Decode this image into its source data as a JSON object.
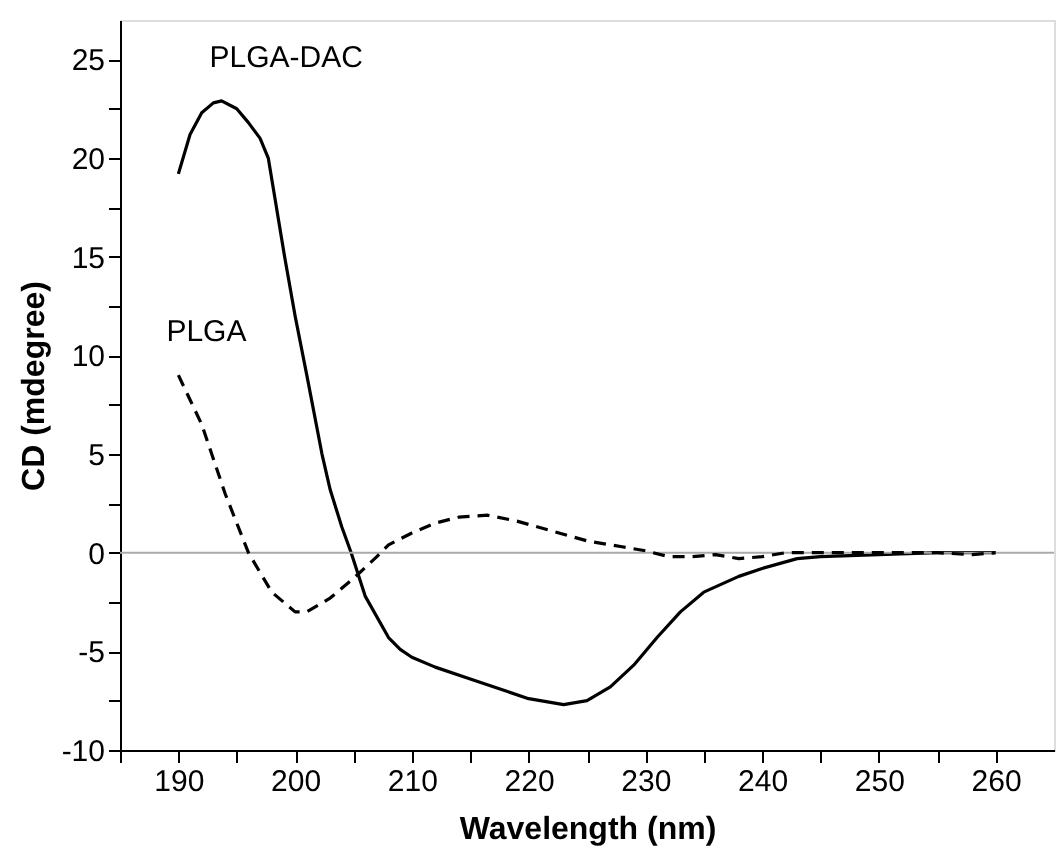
{
  "chart_data": {
    "type": "line",
    "xlabel": "Wavelength (nm)",
    "ylabel": "CD (mdegree)",
    "xlim": [
      185,
      265
    ],
    "ylim": [
      -10,
      27
    ],
    "xticks": [
      {
        "value": 185,
        "label": null
      },
      190,
      {
        "value": 195,
        "label": null
      },
      200,
      {
        "value": 205,
        "label": null
      },
      210,
      {
        "value": 215,
        "label": null
      },
      220,
      {
        "value": 225,
        "label": null
      },
      230,
      {
        "value": 235,
        "label": null
      },
      240,
      {
        "value": 245,
        "label": null
      },
      250,
      {
        "value": 255,
        "label": null
      },
      260
    ],
    "yticks": [
      -10,
      {
        "value": -7.5,
        "label": null
      },
      -5,
      {
        "value": -2.5,
        "label": null
      },
      0,
      {
        "value": 2.5,
        "label": null
      },
      5,
      {
        "value": 7.5,
        "label": null
      },
      10,
      {
        "value": 12.5,
        "label": null
      },
      15,
      {
        "value": 17.5,
        "label": null
      },
      20,
      {
        "value": 22.5,
        "label": null
      },
      25
    ],
    "grid": false,
    "ref_lines": [
      {
        "axis": "y",
        "value": 0,
        "color": "#aaaaaa",
        "line_style": "solid"
      }
    ],
    "series": [
      {
        "name": "PLGA-DAC",
        "color": "#000000",
        "line_style": "solid",
        "x": [
          190,
          191,
          192,
          193,
          193.7,
          195,
          196,
          197,
          197.7,
          199.1,
          200,
          201,
          202.3,
          203,
          204,
          204.8,
          206,
          208,
          209,
          210,
          212,
          215,
          218,
          220,
          223,
          225,
          227,
          229,
          231,
          233,
          235,
          238,
          240,
          243,
          245,
          250,
          255,
          260
        ],
        "values": [
          19.2,
          21.2,
          22.3,
          22.8,
          22.9,
          22.5,
          21.8,
          21,
          20,
          15,
          12,
          9,
          5,
          3.2,
          1.3,
          0,
          -2.2,
          -4.3,
          -4.9,
          -5.3,
          -5.8,
          -6.4,
          -7,
          -7.4,
          -7.7,
          -7.5,
          -6.8,
          -5.7,
          -4.3,
          -3,
          -2,
          -1.2,
          -0.8,
          -0.3,
          -0.2,
          -0.1,
          0,
          0
        ]
      },
      {
        "name": "PLGA",
        "color": "#000000",
        "line_style": "dashed",
        "x": [
          190,
          192,
          194,
          196,
          198,
          200,
          201,
          203,
          205,
          207,
          208,
          210,
          212,
          214,
          216.5,
          219,
          222,
          225,
          228,
          230,
          232,
          234,
          236,
          238,
          240,
          242,
          245,
          250,
          255,
          258,
          260
        ],
        "values": [
          9,
          6.5,
          3,
          0,
          -2,
          -3,
          -3,
          -2.3,
          -1.3,
          -0.2,
          0.4,
          1,
          1.5,
          1.8,
          1.9,
          1.6,
          1.1,
          0.6,
          0.3,
          0.1,
          -0.2,
          -0.2,
          -0.1,
          -0.3,
          -0.2,
          0,
          0,
          0,
          0,
          -0.1,
          0
        ]
      }
    ]
  }
}
